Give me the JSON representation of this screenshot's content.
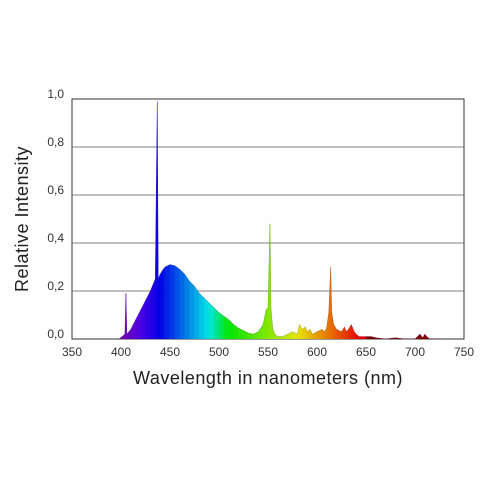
{
  "chart_data": {
    "type": "area",
    "title": "",
    "xlabel": "Wavelength in nanometers (nm)",
    "ylabel": "Relative  Intensity",
    "xlim": [
      350,
      750
    ],
    "ylim": [
      0,
      1.0
    ],
    "x_ticks": [
      "350",
      "400",
      "450",
      "500",
      "550",
      "600",
      "650",
      "700",
      "750"
    ],
    "y_ticks": [
      "0,0",
      "0,2",
      "0,4",
      "0,6",
      "0,8",
      "1,0"
    ],
    "grid": true,
    "legend": "none",
    "fill": "spectral colors (violet to red by wavelength)",
    "series": [
      {
        "x": [
          398,
          404,
          405,
          406,
          410,
          415,
          420,
          425,
          430,
          435,
          437,
          438,
          440,
          443,
          445,
          450,
          455,
          460,
          465,
          470,
          475,
          480,
          485,
          490,
          495,
          500,
          505,
          510,
          515,
          520,
          525,
          530,
          535,
          540,
          545,
          548,
          550,
          552,
          553,
          554,
          555,
          557,
          560,
          565,
          570,
          575,
          580,
          582,
          585,
          588,
          590,
          593,
          595,
          600,
          605,
          608,
          610,
          612,
          614,
          615,
          617,
          620,
          625,
          628,
          630,
          632,
          635,
          638,
          640,
          643,
          645,
          650,
          655,
          660,
          670,
          680,
          690,
          700,
          705,
          708,
          710,
          712,
          715,
          720,
          725,
          730
        ],
        "values": [
          0.0,
          0.02,
          0.19,
          0.02,
          0.04,
          0.08,
          0.12,
          0.16,
          0.2,
          0.25,
          0.99,
          0.25,
          0.27,
          0.29,
          0.3,
          0.31,
          0.305,
          0.29,
          0.27,
          0.24,
          0.22,
          0.19,
          0.17,
          0.15,
          0.13,
          0.11,
          0.095,
          0.08,
          0.06,
          0.045,
          0.035,
          0.025,
          0.02,
          0.03,
          0.06,
          0.12,
          0.13,
          0.48,
          0.13,
          0.08,
          0.04,
          0.02,
          0.01,
          0.01,
          0.02,
          0.03,
          0.02,
          0.06,
          0.04,
          0.05,
          0.03,
          0.04,
          0.02,
          0.03,
          0.04,
          0.03,
          0.05,
          0.11,
          0.3,
          0.11,
          0.06,
          0.04,
          0.03,
          0.05,
          0.03,
          0.04,
          0.06,
          0.03,
          0.02,
          0.01,
          0.01,
          0.01,
          0.01,
          0.005,
          0.0,
          0.005,
          0.0,
          0.0,
          0.02,
          0.005,
          0.02,
          0.01,
          0.0,
          0.0,
          0.0,
          0.0
        ]
      }
    ]
  }
}
